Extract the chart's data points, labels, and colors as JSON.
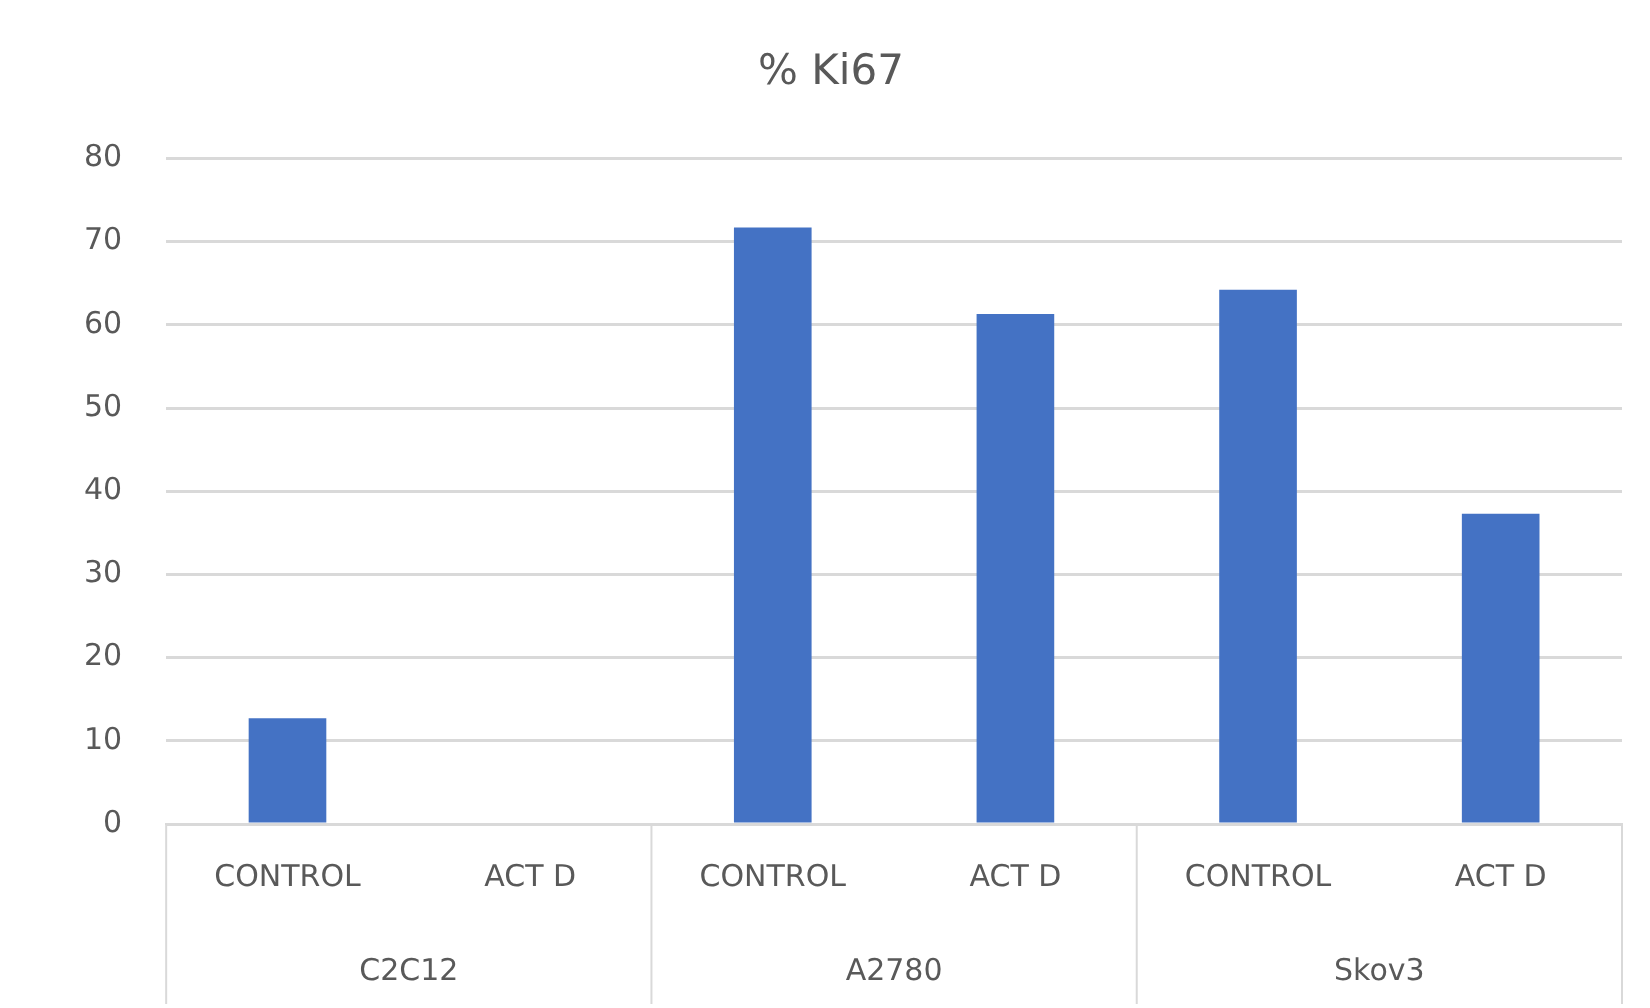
{
  "chart_data": {
    "type": "bar",
    "title": "% Ki67",
    "categories": [
      "CONTROL",
      "ACT D",
      "CONTROL",
      "ACT D",
      "CONTROL",
      "ACT D"
    ],
    "values": [
      12.7,
      0,
      71.7,
      61.3,
      64.2,
      37.3
    ],
    "color": "#4472c4",
    "ylim": [
      0,
      80
    ],
    "yticks": [
      0,
      10,
      20,
      30,
      40,
      50,
      60,
      70,
      80
    ],
    "grid": "y",
    "legend": false,
    "annotations": [
      "C2C12",
      "A2780",
      "Skov3"
    ]
  }
}
